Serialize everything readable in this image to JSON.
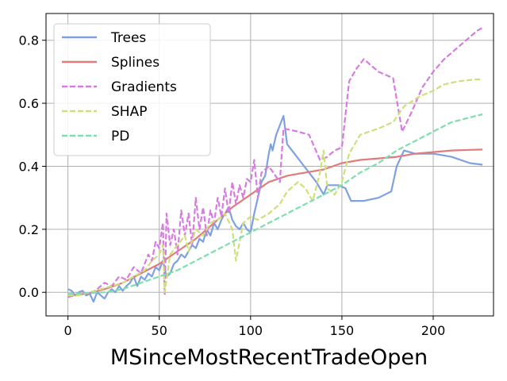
{
  "chart_data": {
    "type": "line",
    "xlabel": "MSinceMostRecentTradeOpen",
    "ylabel": "",
    "xlim": [
      -12,
      233
    ],
    "ylim": [
      -0.075,
      0.885
    ],
    "xticks": [
      0,
      50,
      100,
      150,
      200
    ],
    "yticks": [
      0.0,
      0.2,
      0.4,
      0.6,
      0.8
    ],
    "xtick_labels": [
      "0",
      "50",
      "100",
      "150",
      "200"
    ],
    "ytick_labels": [
      "0.0",
      "0.2",
      "0.4",
      "0.6",
      "0.8"
    ],
    "grid": true,
    "legend_position": "top-left",
    "series": [
      {
        "name": "Trees",
        "color": "#7fa1e0",
        "style": "solid",
        "x": [
          0,
          2,
          4,
          6,
          8,
          10,
          12,
          14,
          16,
          18,
          20,
          22,
          24,
          26,
          28,
          30,
          32,
          34,
          36,
          38,
          40,
          42,
          44,
          46,
          48,
          50,
          52,
          54,
          56,
          58,
          60,
          62,
          64,
          66,
          68,
          70,
          72,
          74,
          76,
          78,
          80,
          82,
          84,
          86,
          88,
          90,
          92,
          94,
          96,
          98,
          100,
          102,
          104,
          106,
          108,
          110,
          111,
          112,
          114,
          118,
          120,
          124,
          128,
          132,
          136,
          140,
          142,
          144,
          148,
          152,
          155,
          162,
          170,
          177,
          180,
          184,
          190,
          200,
          210,
          220,
          227
        ],
        "y": [
          0.01,
          0.005,
          -0.01,
          0.0,
          0.005,
          -0.01,
          -0.005,
          -0.03,
          0.0,
          -0.01,
          -0.02,
          0.0,
          0.01,
          0.0,
          0.02,
          0.005,
          0.02,
          0.03,
          0.05,
          0.02,
          0.05,
          0.04,
          0.06,
          0.05,
          0.08,
          0.07,
          0.1,
          0.05,
          0.06,
          0.09,
          0.1,
          0.12,
          0.11,
          0.13,
          0.15,
          0.14,
          0.17,
          0.16,
          0.2,
          0.18,
          0.22,
          0.2,
          0.23,
          0.25,
          0.27,
          0.23,
          0.21,
          0.2,
          0.22,
          0.2,
          0.19,
          0.25,
          0.3,
          0.35,
          0.37,
          0.44,
          0.47,
          0.45,
          0.5,
          0.56,
          0.47,
          0.44,
          0.41,
          0.38,
          0.35,
          0.31,
          0.34,
          0.34,
          0.34,
          0.33,
          0.29,
          0.29,
          0.3,
          0.32,
          0.4,
          0.45,
          0.44,
          0.44,
          0.43,
          0.41,
          0.405
        ]
      },
      {
        "name": "Splines",
        "color": "#e07c7c",
        "style": "solid",
        "x": [
          0,
          10,
          20,
          30,
          40,
          50,
          60,
          70,
          80,
          90,
          100,
          110,
          120,
          130,
          140,
          150,
          160,
          170,
          180,
          190,
          200,
          210,
          220,
          227
        ],
        "y": [
          -0.01,
          -0.005,
          0.01,
          0.03,
          0.06,
          0.09,
          0.13,
          0.17,
          0.22,
          0.27,
          0.31,
          0.35,
          0.37,
          0.38,
          0.39,
          0.41,
          0.42,
          0.425,
          0.43,
          0.44,
          0.445,
          0.45,
          0.452,
          0.453
        ]
      },
      {
        "name": "Gradients",
        "color": "#d77be0",
        "style": "dashed",
        "x": [
          0,
          4,
          8,
          12,
          16,
          20,
          24,
          28,
          32,
          36,
          40,
          44,
          46,
          48,
          50,
          52,
          53,
          54,
          56,
          58,
          60,
          62,
          64,
          66,
          68,
          70,
          72,
          74,
          76,
          78,
          80,
          82,
          84,
          86,
          88,
          90,
          92,
          94,
          96,
          98,
          100,
          102,
          104,
          106,
          110,
          116,
          118,
          126,
          132,
          138,
          142,
          146,
          150,
          154,
          158,
          162,
          166,
          170,
          174,
          178,
          183,
          188,
          194,
          200,
          206,
          212,
          218,
          224,
          227
        ],
        "y": [
          -0.015,
          -0.01,
          0.0,
          -0.005,
          0.01,
          0.03,
          0.02,
          0.05,
          0.04,
          0.08,
          0.06,
          0.12,
          0.1,
          0.16,
          0.14,
          0.22,
          -0.01,
          0.25,
          0.15,
          0.2,
          0.12,
          0.26,
          0.18,
          0.25,
          0.15,
          0.3,
          0.2,
          0.27,
          0.18,
          0.26,
          0.22,
          0.3,
          0.24,
          0.33,
          0.25,
          0.35,
          0.28,
          0.34,
          0.3,
          0.36,
          0.35,
          0.42,
          0.3,
          0.38,
          0.4,
          0.35,
          0.52,
          0.51,
          0.5,
          0.42,
          0.43,
          0.45,
          0.46,
          0.67,
          0.71,
          0.74,
          0.72,
          0.7,
          0.69,
          0.68,
          0.51,
          0.57,
          0.65,
          0.7,
          0.74,
          0.77,
          0.8,
          0.83,
          0.84
        ]
      },
      {
        "name": "SHAP",
        "color": "#cde07b",
        "style": "dashed",
        "x": [
          0,
          6,
          12,
          18,
          24,
          30,
          36,
          42,
          46,
          50,
          52,
          53,
          56,
          60,
          64,
          66,
          70,
          74,
          78,
          82,
          86,
          90,
          92,
          96,
          100,
          104,
          110,
          116,
          120,
          126,
          130,
          134,
          138,
          140,
          142,
          146,
          150,
          154,
          160,
          170,
          178,
          184,
          192,
          200,
          206,
          214,
          222,
          227
        ],
        "y": [
          -0.01,
          -0.01,
          0.0,
          0.01,
          0.02,
          0.03,
          0.05,
          0.07,
          0.1,
          0.12,
          0.15,
          0.0,
          0.12,
          0.15,
          0.18,
          0.13,
          0.2,
          0.18,
          0.22,
          0.23,
          0.25,
          0.2,
          0.1,
          0.22,
          0.24,
          0.23,
          0.25,
          0.28,
          0.32,
          0.35,
          0.33,
          0.29,
          0.38,
          0.45,
          0.33,
          0.31,
          0.35,
          0.44,
          0.5,
          0.52,
          0.54,
          0.59,
          0.62,
          0.64,
          0.66,
          0.67,
          0.675,
          0.676
        ]
      },
      {
        "name": "PD",
        "color": "#7be0ab",
        "style": "dashed",
        "x": [
          0,
          10,
          20,
          30,
          40,
          50,
          60,
          70,
          80,
          90,
          100,
          110,
          120,
          130,
          140,
          150,
          160,
          170,
          180,
          190,
          200,
          210,
          220,
          227
        ],
        "y": [
          -0.005,
          -0.003,
          0.0,
          0.01,
          0.03,
          0.05,
          0.07,
          0.1,
          0.13,
          0.16,
          0.19,
          0.22,
          0.25,
          0.28,
          0.31,
          0.34,
          0.38,
          0.41,
          0.45,
          0.48,
          0.51,
          0.54,
          0.555,
          0.565
        ]
      }
    ]
  }
}
